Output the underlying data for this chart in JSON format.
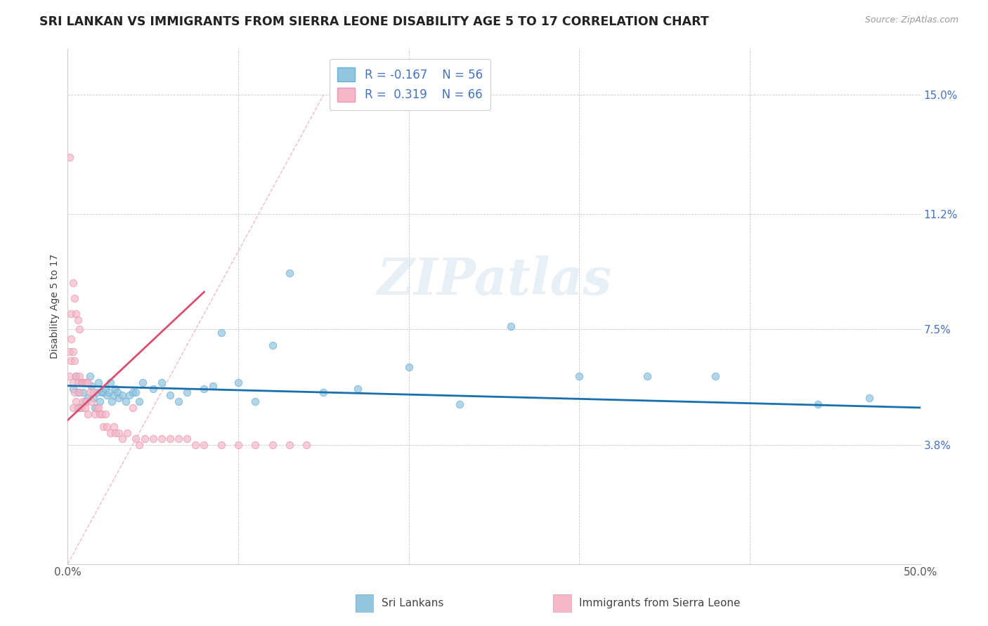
{
  "title": "SRI LANKAN VS IMMIGRANTS FROM SIERRA LEONE DISABILITY AGE 5 TO 17 CORRELATION CHART",
  "source": "Source: ZipAtlas.com",
  "ylabel": "Disability Age 5 to 17",
  "xlim": [
    0,
    0.5
  ],
  "ylim": [
    0,
    0.165
  ],
  "xtick_positions": [
    0.0,
    0.1,
    0.2,
    0.3,
    0.4,
    0.5
  ],
  "xticklabels": [
    "0.0%",
    "",
    "",
    "",
    "",
    "50.0%"
  ],
  "ytick_positions": [
    0.038,
    0.075,
    0.112,
    0.15
  ],
  "yticklabels": [
    "3.8%",
    "7.5%",
    "11.2%",
    "15.0%"
  ],
  "grid_color": "#bbbbbb",
  "background_color": "#ffffff",
  "watermark_text": "ZIPatlas",
  "blue_color": "#92c5de",
  "pink_color": "#f4b8c8",
  "blue_line_color": "#1a6faf",
  "pink_line_color": "#d94f70",
  "ref_line_color": "#ddbbbb",
  "title_fontsize": 12.5,
  "axis_label_fontsize": 10,
  "tick_fontsize": 11,
  "ytick_color": "#4472c4",
  "xtick_color": "#555555",
  "blue_dots_x": [
    0.003,
    0.005,
    0.006,
    0.007,
    0.008,
    0.009,
    0.01,
    0.011,
    0.012,
    0.013,
    0.014,
    0.015,
    0.016,
    0.017,
    0.018,
    0.019,
    0.02,
    0.021,
    0.022,
    0.023,
    0.024,
    0.025,
    0.026,
    0.027,
    0.028,
    0.029,
    0.03,
    0.032,
    0.034,
    0.036,
    0.038,
    0.04,
    0.042,
    0.044,
    0.05,
    0.055,
    0.06,
    0.065,
    0.07,
    0.08,
    0.085,
    0.09,
    0.1,
    0.11,
    0.12,
    0.13,
    0.15,
    0.17,
    0.2,
    0.23,
    0.26,
    0.3,
    0.34,
    0.38,
    0.44,
    0.47
  ],
  "blue_dots_y": [
    0.056,
    0.06,
    0.055,
    0.05,
    0.058,
    0.055,
    0.052,
    0.058,
    0.053,
    0.06,
    0.057,
    0.053,
    0.05,
    0.055,
    0.058,
    0.052,
    0.055,
    0.055,
    0.056,
    0.054,
    0.055,
    0.058,
    0.052,
    0.054,
    0.056,
    0.055,
    0.053,
    0.054,
    0.052,
    0.054,
    0.055,
    0.055,
    0.052,
    0.058,
    0.056,
    0.058,
    0.054,
    0.052,
    0.055,
    0.056,
    0.057,
    0.074,
    0.058,
    0.052,
    0.07,
    0.093,
    0.055,
    0.056,
    0.063,
    0.051,
    0.076,
    0.06,
    0.06,
    0.06,
    0.051,
    0.053
  ],
  "pink_dots_x": [
    0.001,
    0.001,
    0.002,
    0.002,
    0.003,
    0.003,
    0.003,
    0.004,
    0.004,
    0.005,
    0.005,
    0.006,
    0.006,
    0.007,
    0.007,
    0.008,
    0.008,
    0.009,
    0.009,
    0.01,
    0.01,
    0.011,
    0.011,
    0.012,
    0.012,
    0.013,
    0.014,
    0.015,
    0.016,
    0.017,
    0.018,
    0.019,
    0.02,
    0.021,
    0.022,
    0.023,
    0.025,
    0.027,
    0.028,
    0.03,
    0.032,
    0.035,
    0.038,
    0.04,
    0.042,
    0.045,
    0.05,
    0.055,
    0.06,
    0.065,
    0.07,
    0.075,
    0.08,
    0.09,
    0.1,
    0.11,
    0.12,
    0.13,
    0.14,
    0.001,
    0.002,
    0.003,
    0.004,
    0.005,
    0.006,
    0.007
  ],
  "pink_dots_y": [
    0.068,
    0.06,
    0.072,
    0.065,
    0.068,
    0.058,
    0.05,
    0.065,
    0.055,
    0.06,
    0.052,
    0.058,
    0.05,
    0.06,
    0.055,
    0.058,
    0.05,
    0.058,
    0.052,
    0.058,
    0.05,
    0.058,
    0.052,
    0.058,
    0.048,
    0.055,
    0.052,
    0.055,
    0.048,
    0.05,
    0.05,
    0.048,
    0.048,
    0.044,
    0.048,
    0.044,
    0.042,
    0.044,
    0.042,
    0.042,
    0.04,
    0.042,
    0.05,
    0.04,
    0.038,
    0.04,
    0.04,
    0.04,
    0.04,
    0.04,
    0.04,
    0.038,
    0.038,
    0.038,
    0.038,
    0.038,
    0.038,
    0.038,
    0.038,
    0.13,
    0.08,
    0.09,
    0.085,
    0.08,
    0.078,
    0.075
  ],
  "pink_trend_x0": 0.0,
  "pink_trend_y0": 0.046,
  "pink_trend_x1": 0.08,
  "pink_trend_y1": 0.087,
  "blue_trend_x0": 0.0,
  "blue_trend_y0": 0.057,
  "blue_trend_x1": 0.5,
  "blue_trend_y1": 0.05
}
